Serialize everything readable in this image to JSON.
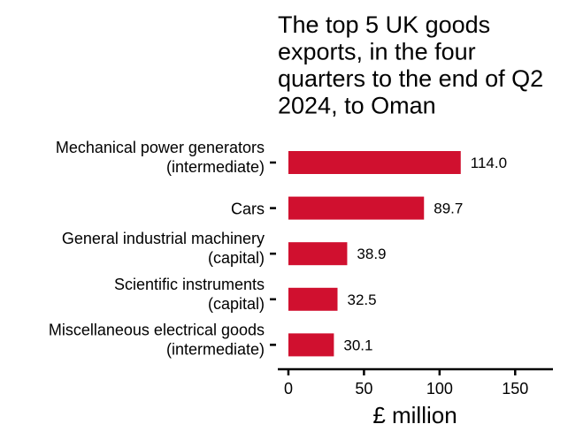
{
  "chart_data": {
    "type": "bar",
    "orientation": "horizontal",
    "title_lines": [
      "The top 5 UK goods",
      "exports, in the four",
      "quarters to the end of Q2",
      "2024, to Oman"
    ],
    "categories": [
      [
        "Mechanical power generators",
        "(intermediate)"
      ],
      [
        "Cars"
      ],
      [
        "General industrial machinery",
        "(capital)"
      ],
      [
        "Scientific instruments",
        "(capital)"
      ],
      [
        "Miscellaneous electrical goods",
        "(intermediate)"
      ]
    ],
    "values": [
      114.0,
      89.7,
      38.9,
      32.5,
      30.1
    ],
    "value_labels": [
      "114.0",
      "89.7",
      "38.9",
      "32.5",
      "30.1"
    ],
    "xlabel": "£ million",
    "ylabel": "",
    "xlim": [
      -7,
      175
    ],
    "xticks": [
      0,
      50,
      100,
      150
    ],
    "xtick_labels": [
      "0",
      "50",
      "100",
      "150"
    ],
    "grid": false,
    "legend": "none",
    "bar_color": "#d0102f"
  }
}
